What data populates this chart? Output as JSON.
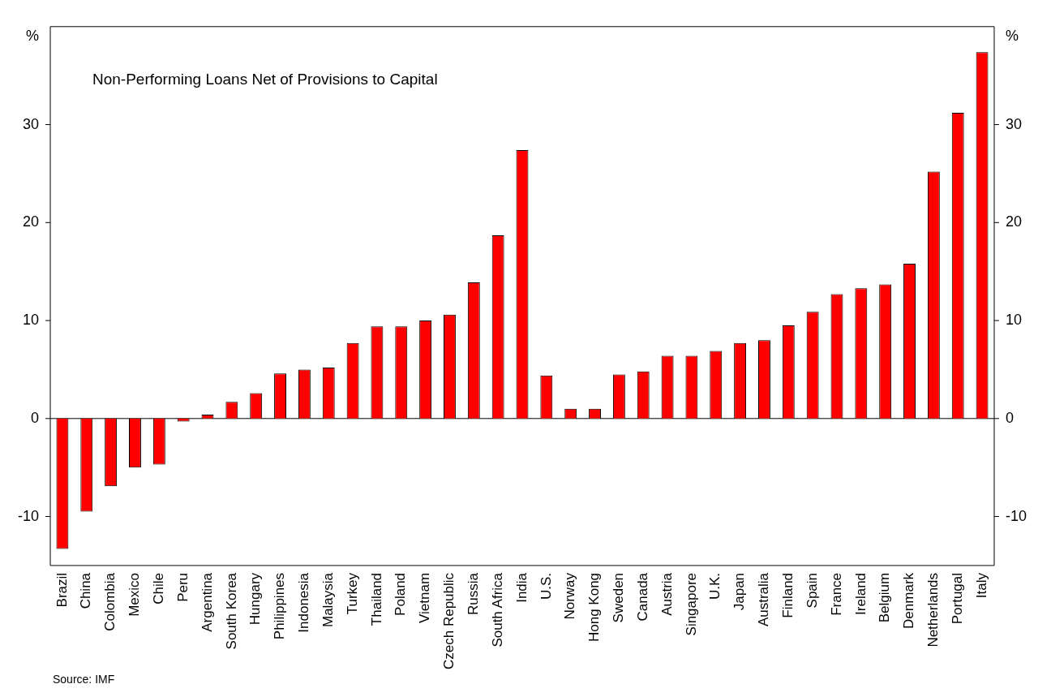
{
  "chart_data": {
    "type": "bar",
    "title": "Non-Performing Loans Net of Provisions to Capital",
    "ylabel": "%",
    "y2label": "%",
    "categories": [
      "Brazil",
      "China",
      "Colombia",
      "Mexico",
      "Chile",
      "Peru",
      "Argentina",
      "South Korea",
      "Hungary",
      "Philippines",
      "Indonesia",
      "Malaysia",
      "Turkey",
      "Thailand",
      "Poland",
      "Vietnam",
      "Czech Republic",
      "Russia",
      "South Africa",
      "India",
      "U.S.",
      "Norway",
      "Hong Kong",
      "Sweden",
      "Canada",
      "Austria",
      "Singapore",
      "U.K.",
      "Japan",
      "Australia",
      "Finland",
      "Spain",
      "France",
      "Ireland",
      "Belgium",
      "Denmark",
      "Netherlands",
      "Portugal",
      "Italy"
    ],
    "values": [
      -13.3,
      -9.5,
      -6.9,
      -5.0,
      -4.7,
      -0.3,
      0.4,
      1.7,
      2.6,
      4.6,
      5.0,
      5.2,
      7.7,
      9.4,
      9.4,
      10.0,
      10.6,
      13.9,
      18.7,
      27.4,
      4.4,
      1.0,
      1.0,
      4.5,
      4.8,
      6.4,
      6.4,
      6.9,
      7.7,
      8.0,
      9.5,
      10.9,
      12.7,
      13.3,
      13.7,
      15.8,
      25.2,
      31.2,
      37.4
    ],
    "color": "#ff0000",
    "ylim": [
      -15,
      40
    ],
    "yticks": [
      -10,
      0,
      10,
      20,
      30
    ],
    "y2lim": [
      -15,
      40
    ],
    "y2ticks": [
      -10,
      0,
      10,
      20,
      30
    ],
    "grid": false,
    "ref_lines": [
      {
        "axis": "y",
        "value": 0,
        "color": "#000000"
      }
    ],
    "legend": false,
    "annotations": [
      "Source: IMF"
    ]
  }
}
